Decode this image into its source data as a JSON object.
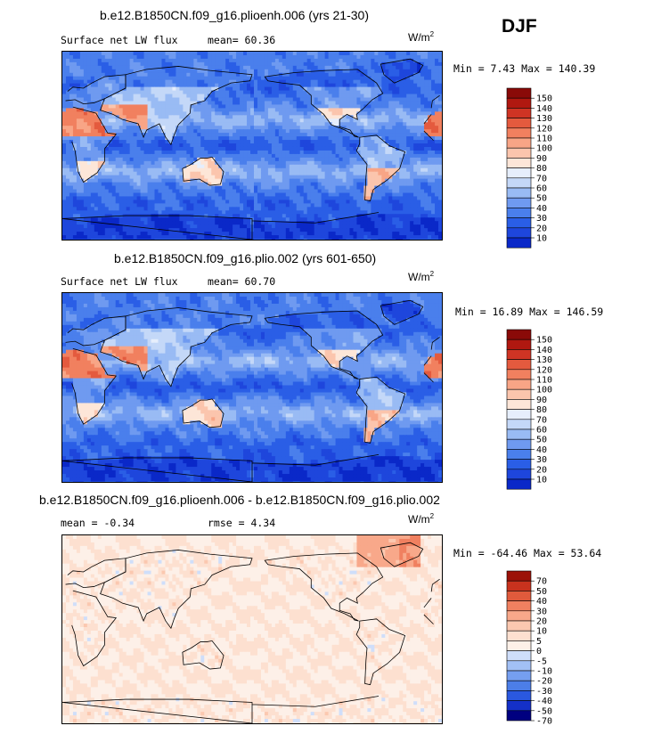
{
  "season": "DJF",
  "colors": {
    "abs_scale": [
      "#000080",
      "#0a28c8",
      "#1e46dc",
      "#2a5ee6",
      "#4a7fec",
      "#6f9af0",
      "#99bbf4",
      "#c4d8f8",
      "#e6eefc",
      "#fde6d8",
      "#fbc5ad",
      "#f8a586",
      "#f1805f",
      "#e45a3e",
      "#cf3424",
      "#b01810",
      "#8a0a08"
    ],
    "diff_scale": [
      "#000080",
      "#1430c8",
      "#2a58e0",
      "#4c7ee8",
      "#759ff0",
      "#a2c0f5",
      "#cfdefa",
      "#fdf0e8",
      "#fde0d0",
      "#fbc8b0",
      "#f8a88a",
      "#f08060",
      "#e05a3c",
      "#c8321e",
      "#9c1208"
    ]
  },
  "panels": [
    {
      "title": "b.e12.B1850CN.f09_g16.plioenh.006 (yrs 21-30)",
      "left_label": "Surface net LW flux",
      "mid_label": "mean=  60.36",
      "units_base": "W/m",
      "units_exp": "2",
      "minmax": "Min =   7.43 Max = 140.39",
      "chart_data": {
        "type": "heatmap",
        "variable": "Surface net LW flux",
        "units": "W/m2",
        "mean": 60.36,
        "min": 7.43,
        "max": 140.39,
        "colorbar_levels": [
          "150",
          "140",
          "130",
          "120",
          "110",
          "100",
          "90",
          "80",
          "70",
          "60",
          "50",
          "40",
          "30",
          "20",
          "10"
        ]
      }
    },
    {
      "title": "b.e12.B1850CN.f09_g16.plio.002 (yrs 601-650)",
      "left_label": "Surface net LW flux",
      "mid_label": "mean=  60.70",
      "units_base": "W/m",
      "units_exp": "2",
      "minmax": "Min =  16.89 Max = 146.59",
      "chart_data": {
        "type": "heatmap",
        "variable": "Surface net LW flux",
        "units": "W/m2",
        "mean": 60.7,
        "min": 16.89,
        "max": 146.59,
        "colorbar_levels": [
          "150",
          "140",
          "130",
          "120",
          "110",
          "100",
          "90",
          "80",
          "70",
          "60",
          "50",
          "40",
          "30",
          "20",
          "10"
        ]
      }
    },
    {
      "title": "b.e12.B1850CN.f09_g16.plioenh.006 - b.e12.B1850CN.f09_g16.plio.002",
      "left_label": "mean =  -0.34",
      "mid_label": "rmse =   4.34",
      "units_base": "W/m",
      "units_exp": "2",
      "minmax": "Min = -64.46 Max =  53.64",
      "chart_data": {
        "type": "heatmap",
        "variable": "Surface net LW flux difference",
        "units": "W/m2",
        "mean": -0.34,
        "rmse": 4.34,
        "min": -64.46,
        "max": 53.64,
        "colorbar_levels": [
          "70",
          "50",
          "40",
          "30",
          "20",
          "10",
          "5",
          "0",
          "-5",
          "-10",
          "-20",
          "-30",
          "-40",
          "-50",
          "-70"
        ]
      }
    }
  ]
}
